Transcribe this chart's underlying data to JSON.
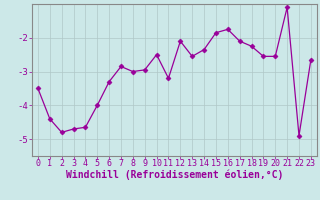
{
  "x": [
    0,
    1,
    2,
    3,
    4,
    5,
    6,
    7,
    8,
    9,
    10,
    11,
    12,
    13,
    14,
    15,
    16,
    17,
    18,
    19,
    20,
    21,
    22,
    23
  ],
  "y": [
    -3.5,
    -4.4,
    -4.8,
    -4.7,
    -4.65,
    -4.0,
    -3.3,
    -2.85,
    -3.0,
    -2.95,
    -2.5,
    -3.2,
    -2.1,
    -2.55,
    -2.35,
    -1.85,
    -1.75,
    -2.1,
    -2.25,
    -2.55,
    -2.55,
    -1.1,
    -4.9,
    -2.65
  ],
  "line_color": "#990099",
  "marker": "D",
  "marker_size": 2.5,
  "xlabel": "Windchill (Refroidissement éolien,°C)",
  "xlim": [
    -0.5,
    23.5
  ],
  "ylim": [
    -5.5,
    -1.0
  ],
  "yticks": [
    -5,
    -4,
    -3,
    -2
  ],
  "xticks": [
    0,
    1,
    2,
    3,
    4,
    5,
    6,
    7,
    8,
    9,
    10,
    11,
    12,
    13,
    14,
    15,
    16,
    17,
    18,
    19,
    20,
    21,
    22,
    23
  ],
  "bg_color": "#cce8e8",
  "grid_color": "#b0c8c8",
  "tick_color": "#990099",
  "label_color": "#990099",
  "axis_color": "#888888",
  "font_size": 6.0,
  "xlabel_fontsize": 7.0
}
